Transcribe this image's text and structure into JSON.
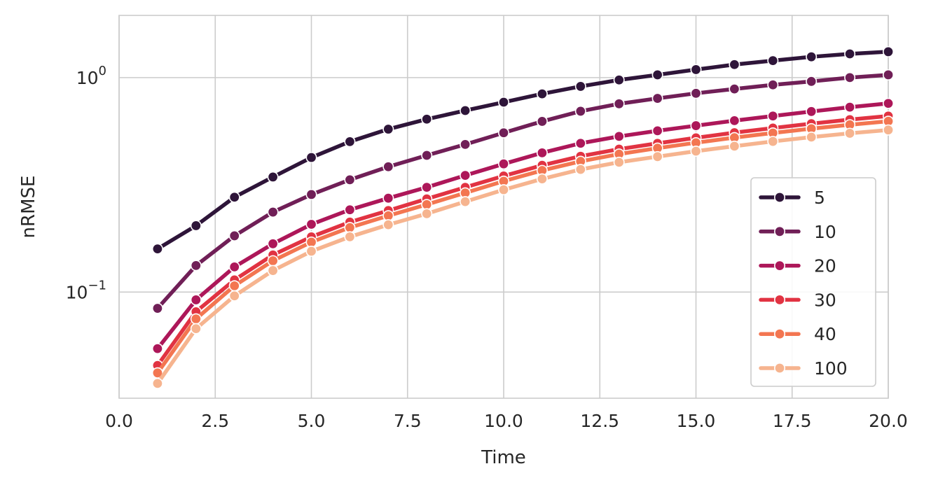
{
  "chart_data": {
    "type": "line",
    "xlabel": "Time",
    "ylabel": "nRMSE",
    "xlim": [
      0,
      20
    ],
    "ylim": [
      0.032,
      1.95
    ],
    "yscale": "log",
    "grid": true,
    "legend_position": "lower-right",
    "x_ticks": [
      "0.0",
      "2.5",
      "5.0",
      "7.5",
      "10.0",
      "12.5",
      "15.0",
      "17.5",
      "20.0"
    ],
    "y_ticks": [
      {
        "value": 1.0,
        "base": "10",
        "exp": "0"
      },
      {
        "value": 0.1,
        "base": "10",
        "exp": "−1"
      }
    ],
    "x": [
      1,
      2,
      3,
      4,
      5,
      6,
      7,
      8,
      9,
      10,
      11,
      12,
      13,
      14,
      15,
      16,
      17,
      18,
      19,
      20
    ],
    "series": [
      {
        "name": "5",
        "color": "#2e1539",
        "values": [
          0.159,
          0.204,
          0.277,
          0.344,
          0.424,
          0.503,
          0.575,
          0.64,
          0.702,
          0.768,
          0.84,
          0.91,
          0.975,
          1.03,
          1.09,
          1.15,
          1.2,
          1.25,
          1.29,
          1.32
        ]
      },
      {
        "name": "10",
        "color": "#701f57",
        "values": [
          0.084,
          0.133,
          0.183,
          0.236,
          0.285,
          0.334,
          0.384,
          0.434,
          0.488,
          0.553,
          0.625,
          0.697,
          0.755,
          0.8,
          0.845,
          0.885,
          0.925,
          0.96,
          1.0,
          1.03
        ]
      },
      {
        "name": "20",
        "color": "#ad1759",
        "values": [
          0.0545,
          0.092,
          0.131,
          0.168,
          0.207,
          0.242,
          0.274,
          0.308,
          0.35,
          0.396,
          0.446,
          0.494,
          0.532,
          0.565,
          0.597,
          0.63,
          0.662,
          0.695,
          0.728,
          0.758
        ]
      },
      {
        "name": "30",
        "color": "#e13342",
        "values": [
          0.0455,
          0.081,
          0.114,
          0.149,
          0.181,
          0.212,
          0.24,
          0.272,
          0.308,
          0.348,
          0.39,
          0.43,
          0.464,
          0.494,
          0.524,
          0.554,
          0.582,
          0.61,
          0.637,
          0.662
        ]
      },
      {
        "name": "40",
        "color": "#f37651",
        "values": [
          0.042,
          0.075,
          0.107,
          0.14,
          0.171,
          0.2,
          0.227,
          0.256,
          0.29,
          0.329,
          0.369,
          0.407,
          0.44,
          0.469,
          0.497,
          0.525,
          0.552,
          0.578,
          0.603,
          0.626
        ]
      },
      {
        "name": "100",
        "color": "#f6b48f",
        "values": [
          0.0375,
          0.0675,
          0.096,
          0.126,
          0.155,
          0.181,
          0.206,
          0.232,
          0.264,
          0.3,
          0.337,
          0.373,
          0.403,
          0.428,
          0.454,
          0.479,
          0.504,
          0.528,
          0.55,
          0.57
        ]
      }
    ]
  }
}
